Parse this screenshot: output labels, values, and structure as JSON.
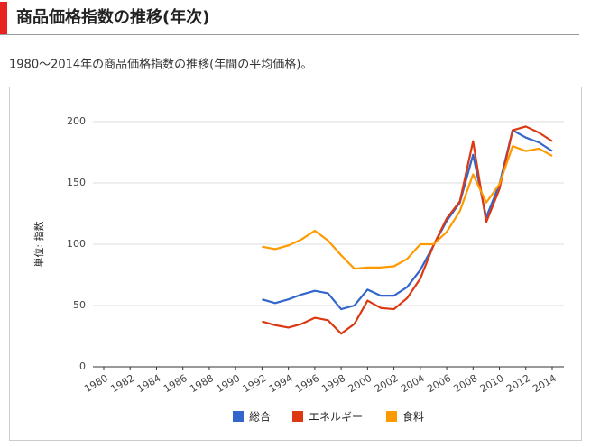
{
  "header": {
    "title": "商品価格指数の推移(年次)"
  },
  "description": "1980～2014年の商品価格指数の推移(年間の平均価格)。",
  "chart_data": {
    "type": "line",
    "y_label": "単位: 指数",
    "x": [
      1992,
      1993,
      1994,
      1995,
      1996,
      1997,
      1998,
      1999,
      2000,
      2001,
      2002,
      2003,
      2004,
      2005,
      2006,
      2007,
      2008,
      2009,
      2010,
      2011,
      2012,
      2013,
      2014
    ],
    "series": [
      {
        "name": "総合",
        "color": "#3366cc",
        "values": [
          55,
          52,
          55,
          59,
          62,
          60,
          47,
          50,
          63,
          58,
          58,
          65,
          79,
          99,
          119,
          134,
          173,
          122,
          149,
          193,
          187,
          183,
          176
        ]
      },
      {
        "name": "エネルギー",
        "color": "#dc3912",
        "values": [
          37,
          34,
          32,
          35,
          40,
          38,
          27,
          35,
          54,
          48,
          47,
          56,
          72,
          99,
          121,
          135,
          184,
          118,
          145,
          193,
          196,
          191,
          184
        ]
      },
      {
        "name": "食料",
        "color": "#ff9900",
        "values": [
          98,
          96,
          99,
          104,
          111,
          103,
          91,
          80,
          81,
          81,
          82,
          88,
          100,
          100,
          110,
          127,
          157,
          134,
          149,
          180,
          176,
          178,
          172
        ]
      }
    ],
    "xlim": [
      1980,
      2014
    ],
    "xticks": [
      1980,
      1982,
      1984,
      1986,
      1988,
      1990,
      1992,
      1994,
      1996,
      1998,
      2000,
      2002,
      2004,
      2006,
      2008,
      2010,
      2012,
      2014
    ],
    "ylim": [
      0,
      200
    ],
    "yticks": [
      0,
      50,
      100,
      150,
      200
    ],
    "grid": true,
    "legend": "bottom"
  }
}
